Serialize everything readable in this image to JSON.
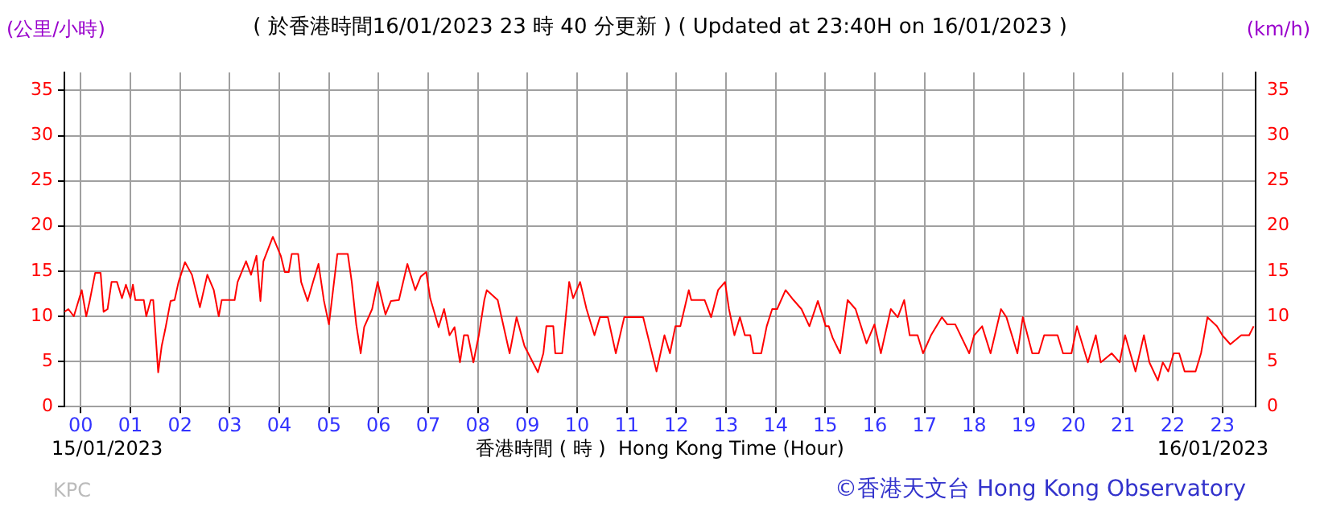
{
  "chart_data": {
    "type": "line",
    "title": "( 於香港時間16/01/2023 23 時 40 分更新 ) ( Updated at 23:40H on 16/01/2023 )",
    "xlabel": "香港時間 ( 時 )  Hong Kong Time (Hour)",
    "ylabel": "(公里/小時)",
    "y2label": "(km/h)",
    "annotations": [
      "15/01/2023",
      "16/01/2023",
      "KPC",
      "©香港天文台 Hong Kong Observatory"
    ],
    "xlim": [
      -0.33,
      23.67
    ],
    "xticks": [
      {
        "value": 0,
        "label": "00"
      },
      {
        "value": 1,
        "label": "01"
      },
      {
        "value": 2,
        "label": "02"
      },
      {
        "value": 3,
        "label": "03"
      },
      {
        "value": 4,
        "label": "04"
      },
      {
        "value": 5,
        "label": "05"
      },
      {
        "value": 6,
        "label": "06"
      },
      {
        "value": 7,
        "label": "07"
      },
      {
        "value": 8,
        "label": "08"
      },
      {
        "value": 9,
        "label": "09"
      },
      {
        "value": 10,
        "label": "10"
      },
      {
        "value": 11,
        "label": "11"
      },
      {
        "value": 12,
        "label": "12"
      },
      {
        "value": 13,
        "label": "13"
      },
      {
        "value": 14,
        "label": "14"
      },
      {
        "value": 15,
        "label": "15"
      },
      {
        "value": 16,
        "label": "16"
      },
      {
        "value": 17,
        "label": "17"
      },
      {
        "value": 18,
        "label": "18"
      },
      {
        "value": 19,
        "label": "19"
      },
      {
        "value": 20,
        "label": "20"
      },
      {
        "value": 21,
        "label": "21"
      },
      {
        "value": 22,
        "label": "22"
      },
      {
        "value": 23,
        "label": "23"
      }
    ],
    "ylim": [
      0,
      37
    ],
    "yticks": [
      0,
      5,
      10,
      15,
      20,
      25,
      30,
      35
    ],
    "y2lim": [
      0,
      37
    ],
    "y2ticks": [
      0,
      5,
      10,
      15,
      20,
      25,
      30,
      35
    ],
    "grid": true,
    "marker": "none",
    "line_style": "solid",
    "legend": false,
    "series": [
      {
        "color": "#ff0000",
        "x": [
          -0.33,
          -0.25,
          -0.14,
          -0.03,
          0.02,
          0.11,
          0.18,
          0.29,
          0.4,
          0.46,
          0.54,
          0.62,
          0.73,
          0.83,
          0.91,
          1.0,
          1.05,
          1.1,
          1.27,
          1.32,
          1.41,
          1.46,
          1.56,
          1.63,
          1.7,
          1.81,
          1.89,
          1.97,
          2.1,
          2.24,
          2.4,
          2.55,
          2.68,
          2.78,
          2.84,
          3.1,
          3.16,
          3.33,
          3.43,
          3.54,
          3.62,
          3.68,
          3.87,
          4.03,
          4.11,
          4.19,
          4.25,
          4.38,
          4.44,
          4.57,
          4.68,
          4.79,
          4.9,
          5.0,
          5.17,
          5.38,
          5.46,
          5.55,
          5.64,
          5.71,
          5.87,
          5.98,
          6.14,
          6.25,
          6.41,
          6.58,
          6.74,
          6.85,
          6.96,
          7.04,
          7.21,
          7.32,
          7.43,
          7.53,
          7.64,
          7.72,
          7.8,
          7.91,
          8.02,
          8.13,
          8.18,
          8.4,
          8.64,
          8.78,
          8.94,
          9.21,
          9.32,
          9.38,
          9.52,
          9.56,
          9.7,
          9.84,
          9.92,
          10.06,
          10.19,
          10.35,
          10.46,
          10.62,
          10.78,
          10.95,
          11.22,
          11.33,
          11.6,
          11.76,
          11.87,
          11.98,
          12.08,
          12.25,
          12.3,
          12.57,
          12.7,
          12.84,
          12.98,
          13.06,
          13.17,
          13.28,
          13.38,
          13.49,
          13.55,
          13.71,
          13.82,
          13.93,
          14.03,
          14.2,
          14.36,
          14.52,
          14.68,
          14.85,
          15.01,
          15.07,
          15.15,
          15.3,
          15.45,
          15.61,
          15.83,
          15.99,
          16.12,
          16.32,
          16.46,
          16.59,
          16.7,
          16.86,
          16.97,
          17.13,
          17.35,
          17.46,
          17.62,
          17.9,
          18.0,
          18.16,
          18.33,
          18.54,
          18.65,
          18.87,
          18.98,
          19.17,
          19.3,
          19.41,
          19.68,
          19.79,
          19.96,
          20.07,
          20.29,
          20.45,
          20.55,
          20.77,
          20.93,
          21.04,
          21.25,
          21.42,
          21.53,
          21.7,
          21.8,
          21.91,
          22.02,
          22.13,
          22.24,
          22.46,
          22.57,
          22.7,
          22.89,
          23.0,
          23.16,
          23.38,
          23.54,
          23.63
        ],
        "values": [
          10.5,
          10.8,
          10,
          12,
          12.9,
          10,
          11.7,
          14.8,
          14.8,
          10.5,
          10.8,
          13.8,
          13.8,
          12,
          13.5,
          12,
          13.5,
          11.8,
          11.8,
          10,
          11.8,
          11.8,
          3.8,
          6.7,
          8.5,
          11.7,
          11.8,
          13.8,
          16,
          14.6,
          11,
          14.6,
          12.9,
          10,
          11.8,
          11.8,
          13.8,
          16.1,
          14.6,
          16.7,
          11.7,
          16.1,
          18.8,
          16.7,
          14.9,
          14.9,
          16.9,
          16.9,
          13.8,
          11.7,
          13.8,
          15.8,
          11.7,
          9.1,
          16.9,
          16.9,
          13.8,
          9.1,
          5.9,
          8.8,
          10.8,
          13.8,
          10.2,
          11.7,
          11.8,
          15.8,
          12.9,
          14.4,
          14.9,
          12,
          8.8,
          10.8,
          7.9,
          8.8,
          4.9,
          7.9,
          7.9,
          4.9,
          7.9,
          11.8,
          12.9,
          11.8,
          5.9,
          9.9,
          6.7,
          3.8,
          5.9,
          8.9,
          8.9,
          5.9,
          5.9,
          13.8,
          12,
          13.8,
          10.8,
          7.9,
          9.9,
          9.9,
          5.9,
          9.9,
          9.9,
          9.9,
          3.9,
          7.9,
          5.9,
          8.9,
          8.9,
          12.9,
          11.8,
          11.8,
          9.9,
          12.9,
          13.8,
          10.8,
          7.9,
          9.9,
          7.9,
          7.9,
          5.9,
          5.9,
          8.9,
          10.8,
          10.8,
          12.9,
          11.8,
          10.8,
          8.9,
          11.7,
          8.9,
          8.9,
          7.6,
          5.9,
          11.8,
          10.8,
          7,
          9.1,
          5.9,
          10.8,
          9.9,
          11.8,
          7.9,
          7.9,
          5.9,
          7.9,
          9.9,
          9.1,
          9.1,
          5.9,
          7.9,
          8.9,
          5.9,
          10.8,
          9.9,
          5.9,
          9.9,
          5.9,
          5.9,
          7.9,
          7.9,
          5.9,
          5.9,
          8.9,
          4.9,
          7.9,
          4.9,
          5.9,
          4.9,
          7.9,
          3.9,
          7.9,
          4.9,
          2.9,
          4.9,
          3.9,
          5.9,
          5.9,
          3.9,
          3.9,
          5.9,
          9.9,
          8.9,
          7.9,
          6.9,
          7.9,
          7.9,
          8.9
        ]
      }
    ]
  }
}
